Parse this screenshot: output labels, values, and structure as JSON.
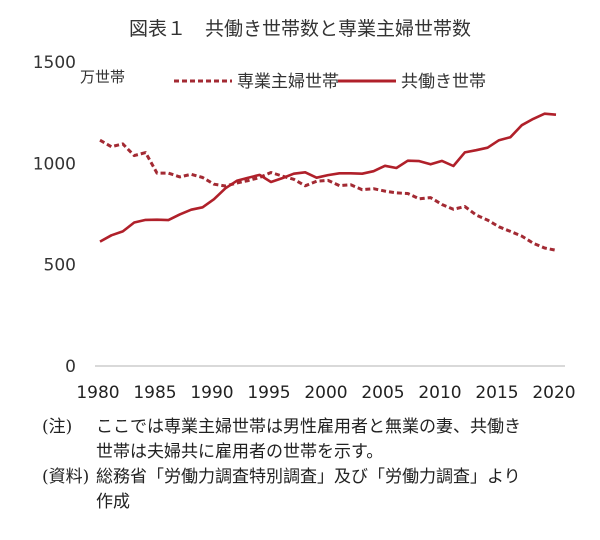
{
  "title": "図表１　共働き世帯数と専業主婦世帯数",
  "notes": [
    {
      "tag": "(注)",
      "text": "ここでは専業主婦世帯は男性雇用者と無業の妻、共働き世帯は夫婦共に雇用者の世帯を示す。"
    },
    {
      "tag": "(資料)",
      "text": "総務省「労働力調査特別調査」及び「労働力調査」より作成"
    }
  ],
  "chart_data": {
    "type": "line",
    "title": "図表１　共働き世帯数と専業主婦世帯数",
    "ylabel": "万世帯",
    "xlabel": "",
    "ylim": [
      0,
      1500
    ],
    "yticks": [
      0,
      500,
      1000,
      1500
    ],
    "xticks": [
      1980,
      1985,
      1990,
      1995,
      2000,
      2005,
      2010,
      2015,
      2020
    ],
    "grid": false,
    "legend_position": "top",
    "x": [
      1980,
      1981,
      1982,
      1983,
      1984,
      1985,
      1986,
      1987,
      1988,
      1989,
      1990,
      1991,
      1992,
      1993,
      1994,
      1995,
      1996,
      1997,
      1998,
      1999,
      2000,
      2001,
      2002,
      2003,
      2004,
      2005,
      2006,
      2007,
      2008,
      2009,
      2010,
      2011,
      2012,
      2013,
      2014,
      2015,
      2016,
      2017,
      2018,
      2019,
      2020
    ],
    "series": [
      {
        "name": "専業主婦世帯",
        "style": "dashed",
        "color": "#a32a33",
        "values": [
          1114,
          1082,
          1096,
          1038,
          1053,
          952,
          952,
          933,
          946,
          930,
          897,
          888,
          903,
          915,
          930,
          955,
          937,
          921,
          889,
          912,
          916,
          890,
          894,
          870,
          875,
          863,
          854,
          851,
          825,
          831,
          797,
          773,
          787,
          745,
          720,
          687,
          664,
          641,
          606,
          582,
          571
        ]
      },
      {
        "name": "共働き世帯",
        "style": "solid",
        "color": "#b0202a",
        "values": [
          614,
          645,
          664,
          708,
          721,
          722,
          720,
          748,
          771,
          783,
          823,
          877,
          914,
          929,
          943,
          908,
          927,
          949,
          956,
          929,
          942,
          951,
          951,
          949,
          961,
          988,
          977,
          1013,
          1011,
          995,
          1012,
          987,
          1054,
          1065,
          1077,
          1114,
          1129,
          1188,
          1219,
          1245,
          1240
        ]
      }
    ]
  }
}
